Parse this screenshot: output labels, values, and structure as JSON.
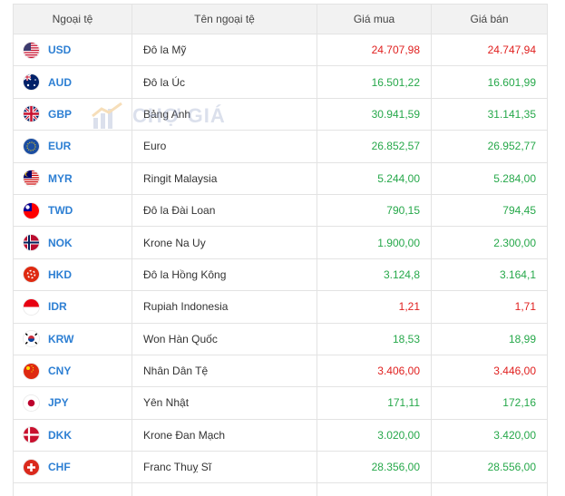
{
  "table": {
    "headers": [
      "Ngoại tệ",
      "Tên ngoại tệ",
      "Giá mua",
      "Giá bán"
    ],
    "rows": [
      {
        "code": "USD",
        "name": "Đô la Mỹ",
        "buy": "24.707,98",
        "sell": "24.747,94",
        "buy_trend": "down",
        "sell_trend": "down",
        "flag": "us-flag-icon"
      },
      {
        "code": "AUD",
        "name": "Đô la Úc",
        "buy": "16.501,22",
        "sell": "16.601,99",
        "buy_trend": "up",
        "sell_trend": "up",
        "flag": "au-flag-icon"
      },
      {
        "code": "GBP",
        "name": "Bảng Anh",
        "buy": "30.941,59",
        "sell": "31.141,35",
        "buy_trend": "up",
        "sell_trend": "up",
        "flag": "gb-flag-icon"
      },
      {
        "code": "EUR",
        "name": "Euro",
        "buy": "26.852,57",
        "sell": "26.952,77",
        "buy_trend": "up",
        "sell_trend": "up",
        "flag": "eu-flag-icon"
      },
      {
        "code": "MYR",
        "name": "Ringit Malaysia",
        "buy": "5.244,00",
        "sell": "5.284,00",
        "buy_trend": "up",
        "sell_trend": "up",
        "flag": "my-flag-icon"
      },
      {
        "code": "TWD",
        "name": "Đô la Đài Loan",
        "buy": "790,15",
        "sell": "794,45",
        "buy_trend": "up",
        "sell_trend": "up",
        "flag": "tw-flag-icon"
      },
      {
        "code": "NOK",
        "name": "Krone Na Uy",
        "buy": "1.900,00",
        "sell": "2.300,00",
        "buy_trend": "up",
        "sell_trend": "up",
        "flag": "no-flag-icon"
      },
      {
        "code": "HKD",
        "name": "Đô la Hồng Kông",
        "buy": "3.124,8",
        "sell": "3.164,1",
        "buy_trend": "up",
        "sell_trend": "up",
        "flag": "hk-flag-icon"
      },
      {
        "code": "IDR",
        "name": "Rupiah Indonesia",
        "buy": "1,21",
        "sell": "1,71",
        "buy_trend": "down",
        "sell_trend": "down",
        "flag": "id-flag-icon"
      },
      {
        "code": "KRW",
        "name": "Won Hàn Quốc",
        "buy": "18,53",
        "sell": "18,99",
        "buy_trend": "up",
        "sell_trend": "up",
        "flag": "kr-flag-icon"
      },
      {
        "code": "CNY",
        "name": "Nhân Dân Tệ",
        "buy": "3.406,00",
        "sell": "3.446,00",
        "buy_trend": "down",
        "sell_trend": "down",
        "flag": "cn-flag-icon"
      },
      {
        "code": "JPY",
        "name": "Yên Nhật",
        "buy": "171,11",
        "sell": "172,16",
        "buy_trend": "up",
        "sell_trend": "up",
        "flag": "jp-flag-icon"
      },
      {
        "code": "DKK",
        "name": "Krone Đan Mạch",
        "buy": "3.020,00",
        "sell": "3.420,00",
        "buy_trend": "up",
        "sell_trend": "up",
        "flag": "dk-flag-icon"
      },
      {
        "code": "CHF",
        "name": "Franc Thuỵ Sĩ",
        "buy": "28.356,00",
        "sell": "28.556,00",
        "buy_trend": "up",
        "sell_trend": "up",
        "flag": "ch-flag-icon"
      }
    ]
  },
  "watermark": {
    "text": "CHỢ GIÁ"
  },
  "colors": {
    "up": "#26a84a",
    "down": "#e0201f",
    "code": "#2d7fd3",
    "header_bg": "#f2f2f2"
  }
}
